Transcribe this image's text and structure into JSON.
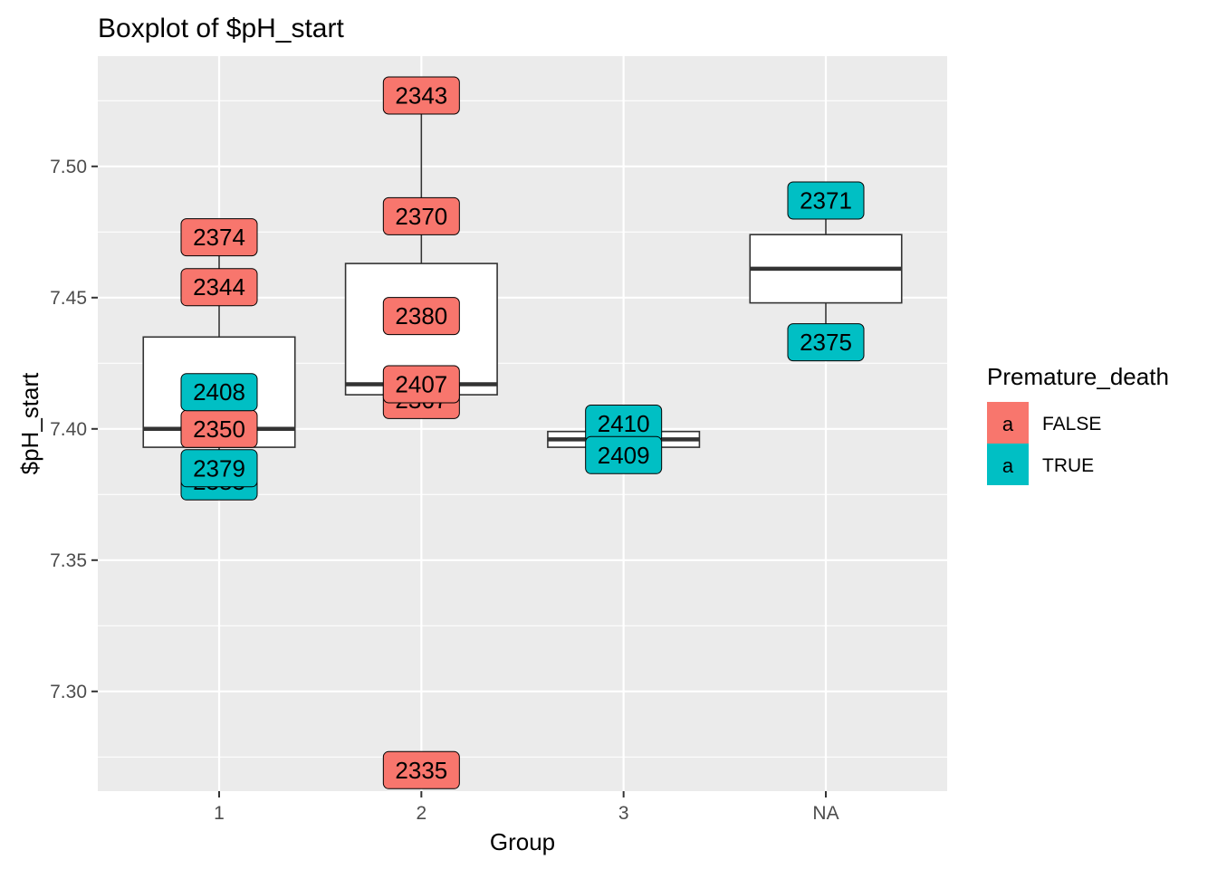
{
  "chart_data": {
    "type": "box",
    "title": "Boxplot of  $pH_start",
    "xlabel": "Group",
    "ylabel": "$pH_start",
    "categories": [
      "1",
      "2",
      "3",
      "NA"
    ],
    "ylim": [
      7.262,
      7.542
    ],
    "yticks": [
      {
        "value": 7.3,
        "label": "7.30"
      },
      {
        "value": 7.35,
        "label": "7.35"
      },
      {
        "value": 7.4,
        "label": "7.40"
      },
      {
        "value": 7.45,
        "label": "7.45"
      },
      {
        "value": 7.5,
        "label": "7.50"
      }
    ],
    "y_minor_gridlines": [
      7.275,
      7.325,
      7.375,
      7.425,
      7.475,
      7.525
    ],
    "grid": true,
    "boxes": [
      {
        "category": "1",
        "lower_whisker": 7.38,
        "q1": 7.393,
        "median": 7.4,
        "q3": 7.435,
        "upper_whisker": 7.473
      },
      {
        "category": "2",
        "lower_whisker": 7.411,
        "q1": 7.413,
        "median": 7.417,
        "q3": 7.463,
        "upper_whisker": 7.527
      },
      {
        "category": "3",
        "lower_whisker": 7.393,
        "q1": 7.393,
        "median": 7.396,
        "q3": 7.399,
        "upper_whisker": 7.399
      },
      {
        "category": "NA",
        "lower_whisker": 7.435,
        "q1": 7.448,
        "median": 7.461,
        "q3": 7.474,
        "upper_whisker": 7.487
      }
    ],
    "points": [
      {
        "category": "1",
        "y": 7.473,
        "label": "2374",
        "group": "FALSE"
      },
      {
        "category": "1",
        "y": 7.454,
        "label": "2344",
        "group": "FALSE"
      },
      {
        "category": "1",
        "y": 7.38,
        "label": "2383",
        "group": "TRUE"
      },
      {
        "category": "1",
        "y": 7.385,
        "label": "2379",
        "group": "TRUE"
      },
      {
        "category": "1",
        "y": 7.4,
        "label": "2350",
        "group": "FALSE"
      },
      {
        "category": "1",
        "y": 7.414,
        "label": "2408",
        "group": "TRUE"
      },
      {
        "category": "2",
        "y": 7.527,
        "label": "2343",
        "group": "FALSE"
      },
      {
        "category": "2",
        "y": 7.481,
        "label": "2370",
        "group": "FALSE"
      },
      {
        "category": "2",
        "y": 7.443,
        "label": "2380",
        "group": "FALSE"
      },
      {
        "category": "2",
        "y": 7.411,
        "label": "2367",
        "group": "FALSE"
      },
      {
        "category": "2",
        "y": 7.417,
        "label": "2407",
        "group": "FALSE"
      },
      {
        "category": "2",
        "y": 7.27,
        "label": "2335",
        "group": "FALSE"
      },
      {
        "category": "3",
        "y": 7.402,
        "label": "2410",
        "group": "TRUE"
      },
      {
        "category": "3",
        "y": 7.39,
        "label": "2409",
        "group": "TRUE"
      },
      {
        "category": "NA",
        "y": 7.487,
        "label": "2371",
        "group": "TRUE"
      },
      {
        "category": "NA",
        "y": 7.433,
        "label": "2375",
        "group": "TRUE"
      }
    ],
    "legend": {
      "title": "Premature_death",
      "glyph": "a",
      "position": "right",
      "entries": [
        {
          "label": "FALSE",
          "color": "#F8766D"
        },
        {
          "label": "TRUE",
          "color": "#00BFC4"
        }
      ]
    },
    "colors": {
      "panel_background": "#EBEBEB",
      "grid": "#FFFFFF",
      "box_fill": "#FFFFFF",
      "box_line": "#333333"
    }
  }
}
